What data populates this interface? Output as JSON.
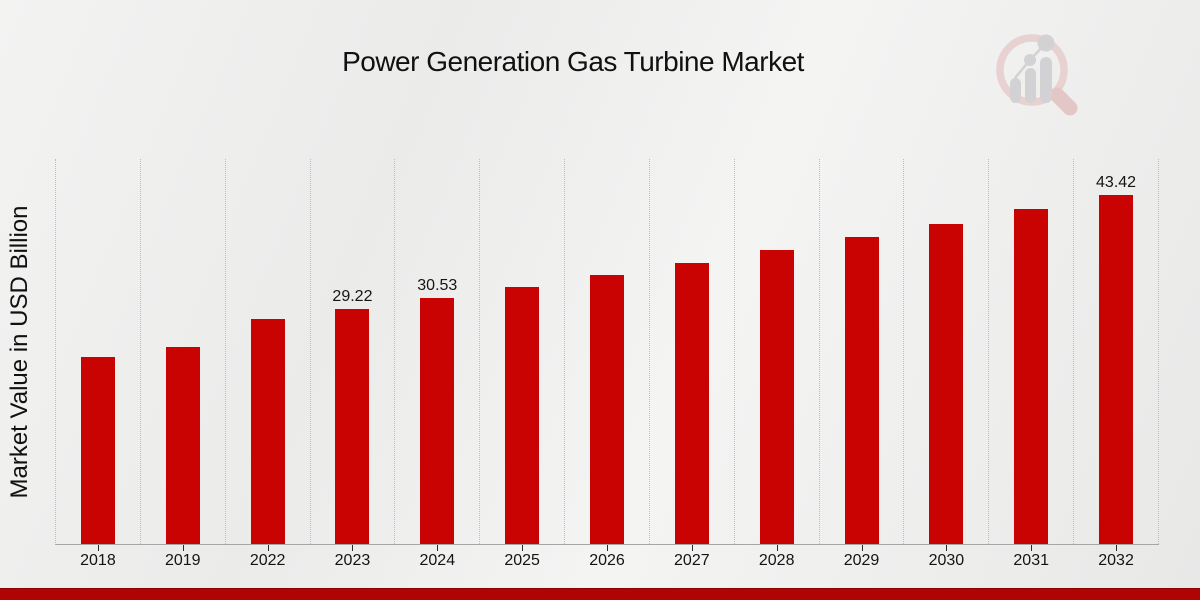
{
  "title": "Power Generation Gas Turbine Market",
  "y_axis_label": "Market Value in USD Billion",
  "colors": {
    "bar": "#c90301",
    "footer_bar": "#b00404",
    "gridline": "#bdbdbd",
    "logo_ring": "#e8d1d1",
    "logo_bars": "#d2d2d4"
  },
  "footer": {
    "present": true
  },
  "logo": {
    "name": "market-research-future-watermark"
  },
  "chart_data": {
    "type": "bar",
    "title": "Power Generation Gas Turbine Market",
    "xlabel": "",
    "ylabel": "Market Value in USD Billion",
    "categories": [
      "2018",
      "2019",
      "2022",
      "2023",
      "2024",
      "2025",
      "2026",
      "2027",
      "2028",
      "2029",
      "2030",
      "2031",
      "2032"
    ],
    "values": [
      23.2,
      24.5,
      28.0,
      29.22,
      30.53,
      31.9,
      33.4,
      35.0,
      36.6,
      38.2,
      39.8,
      41.6,
      43.42
    ],
    "bar_labels": [
      "",
      "",
      "",
      "29.22",
      "30.53",
      "",
      "",
      "",
      "",
      "",
      "",
      "",
      "43.42"
    ],
    "ylim": [
      0,
      48
    ],
    "y_ticks_visible": false,
    "grid": "vertical-dotted",
    "legend": "none"
  }
}
